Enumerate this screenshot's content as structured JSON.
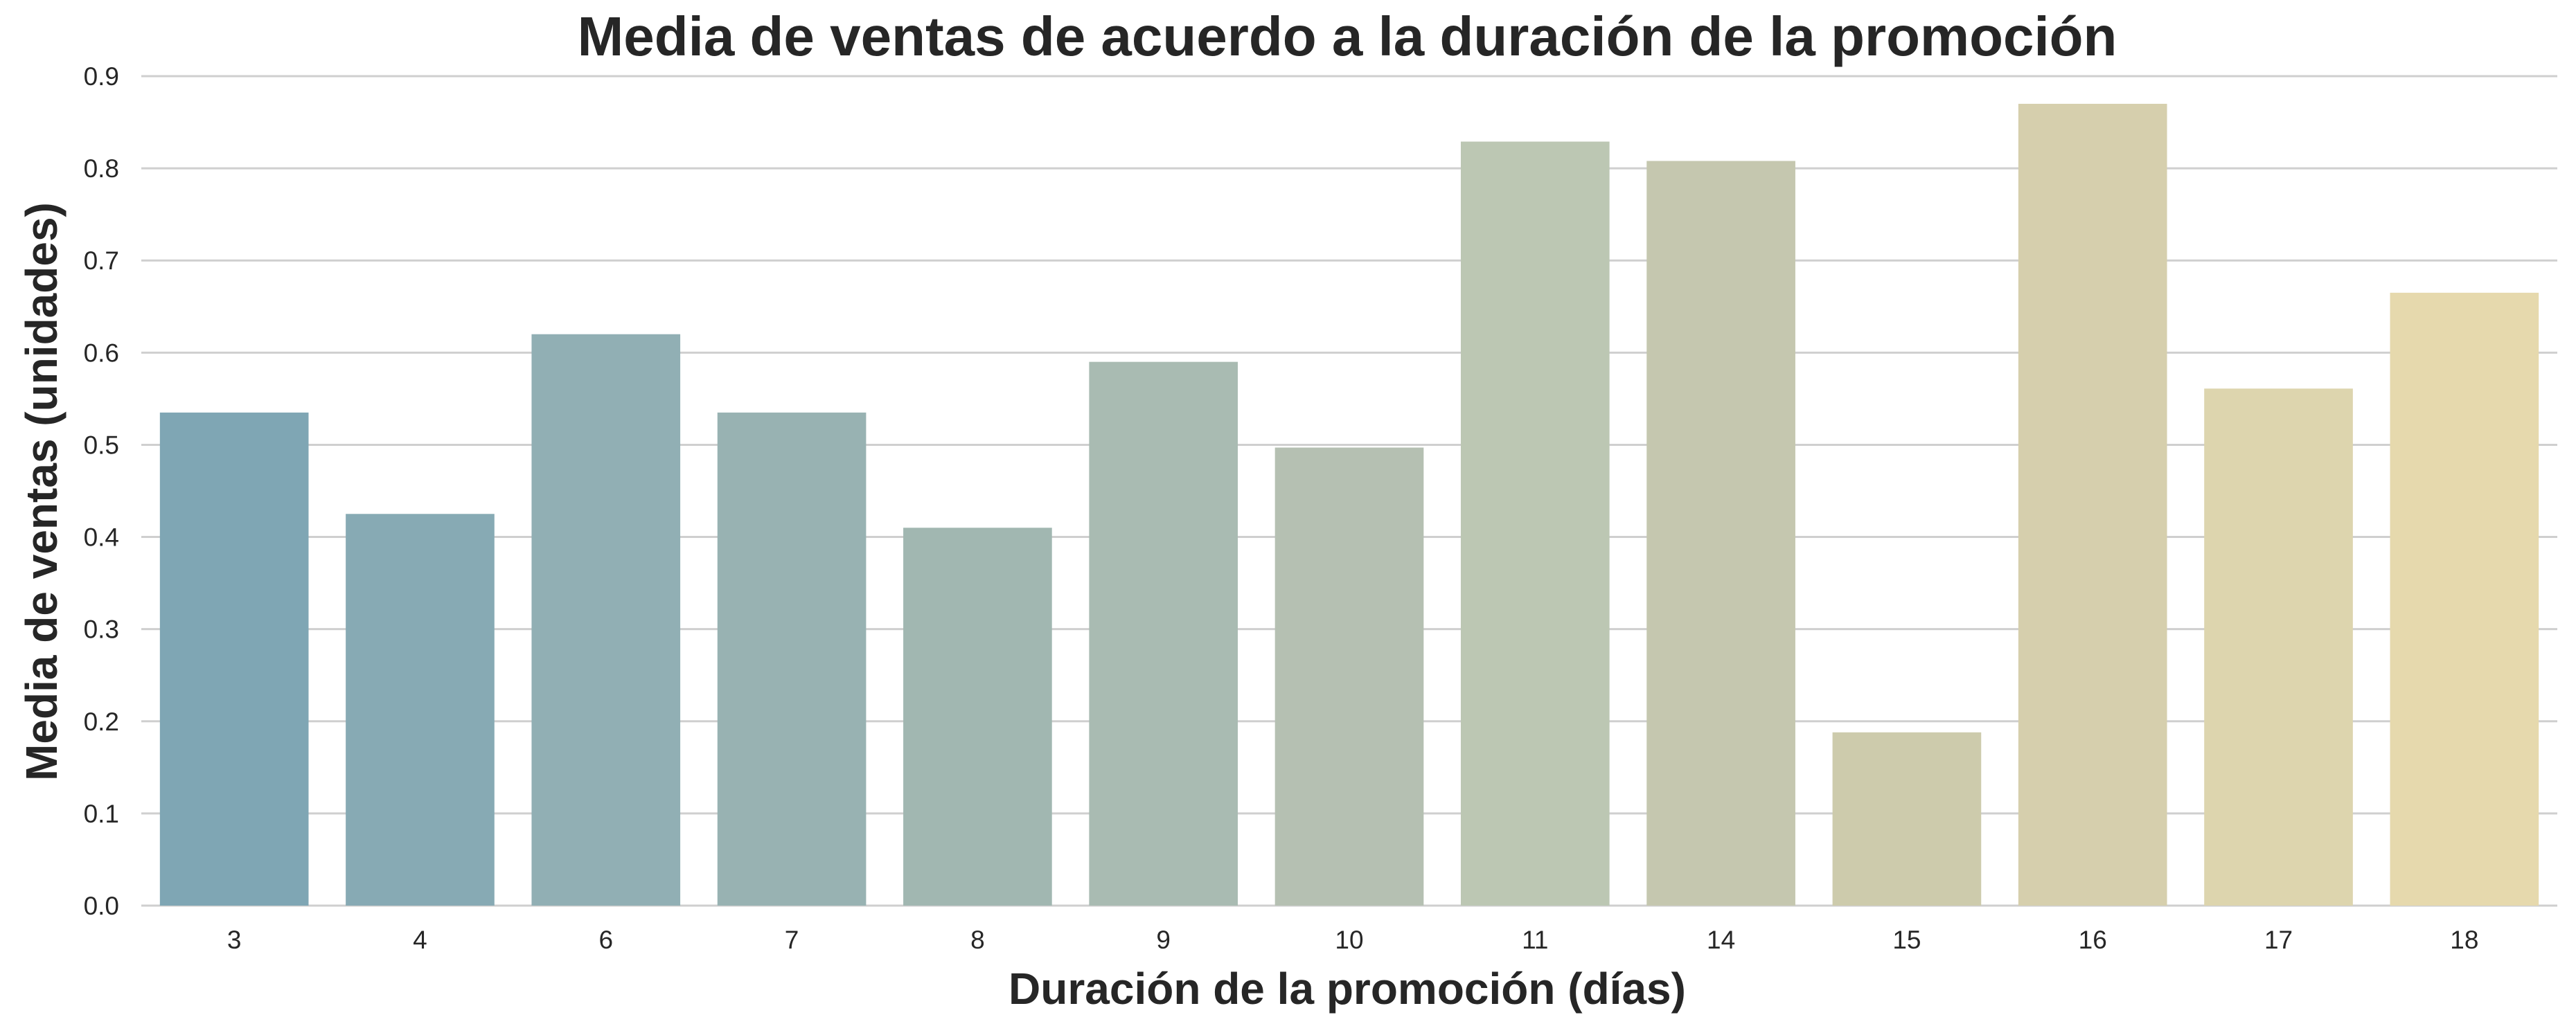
{
  "chart_data": {
    "type": "bar",
    "title": "Media de ventas de acuerdo a la duración de la promoción",
    "xlabel": "Duración de la promoción (días)",
    "ylabel": "Media de ventas (unidades)",
    "categories": [
      "3",
      "4",
      "6",
      "7",
      "8",
      "9",
      "10",
      "11",
      "14",
      "15",
      "16",
      "17",
      "18"
    ],
    "values": [
      0.535,
      0.425,
      0.62,
      0.535,
      0.41,
      0.59,
      0.497,
      0.829,
      0.808,
      0.188,
      0.87,
      0.561,
      0.665
    ],
    "colors": [
      "#7fa6b4",
      "#87aab4",
      "#91afb4",
      "#98b2b2",
      "#a1b7b1",
      "#a9bbb2",
      "#b5c0b2",
      "#bcc7b3",
      "#c5c7af",
      "#cdcbac",
      "#d6cfad",
      "#ddd5ae",
      "#e6d9ad"
    ],
    "ylim": [
      0,
      0.9
    ],
    "yticks": [
      "0.0",
      "0.1",
      "0.2",
      "0.3",
      "0.4",
      "0.5",
      "0.6",
      "0.7",
      "0.8",
      "0.9"
    ],
    "grid": "horizontal",
    "legend": "none"
  }
}
